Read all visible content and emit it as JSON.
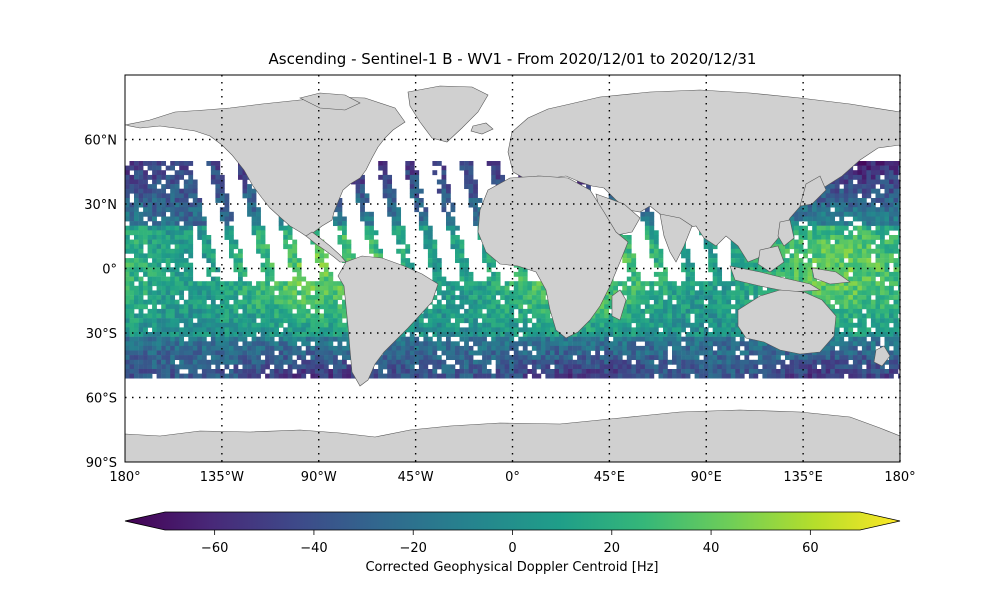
{
  "title": "Ascending - Sentinel-1 B - WV1 - From 2020/12/01 to 2020/12/31",
  "lat_labels": [
    "60°N",
    "30°N",
    "0°",
    "30°S",
    "60°S",
    "90°S"
  ],
  "lon_labels": [
    "180°",
    "135°W",
    "90°W",
    "45°W",
    "0°",
    "45°E",
    "90°E",
    "135°E",
    "180°"
  ],
  "colorbar": {
    "label": "Corrected Geophysical Doppler Centroid [Hz]",
    "ticks": [
      "−60",
      "−40",
      "−20",
      "0",
      "20",
      "40",
      "60"
    ],
    "range": [
      -70,
      70
    ],
    "colormap": "viridis",
    "extend": "both"
  },
  "colors": {
    "land": "#d0d0d0",
    "coast": "#555555",
    "grid": "#000000"
  },
  "chart_data": {
    "type": "heatmap",
    "projection": "PlateCarree",
    "lon_range": [
      -180,
      180
    ],
    "lat_range": [
      -90,
      90
    ],
    "data_lat_extent": [
      -50,
      50
    ],
    "variable": "Corrected Geophysical Doppler Centroid",
    "units": "Hz",
    "vmin": -70,
    "vmax": 70
  }
}
